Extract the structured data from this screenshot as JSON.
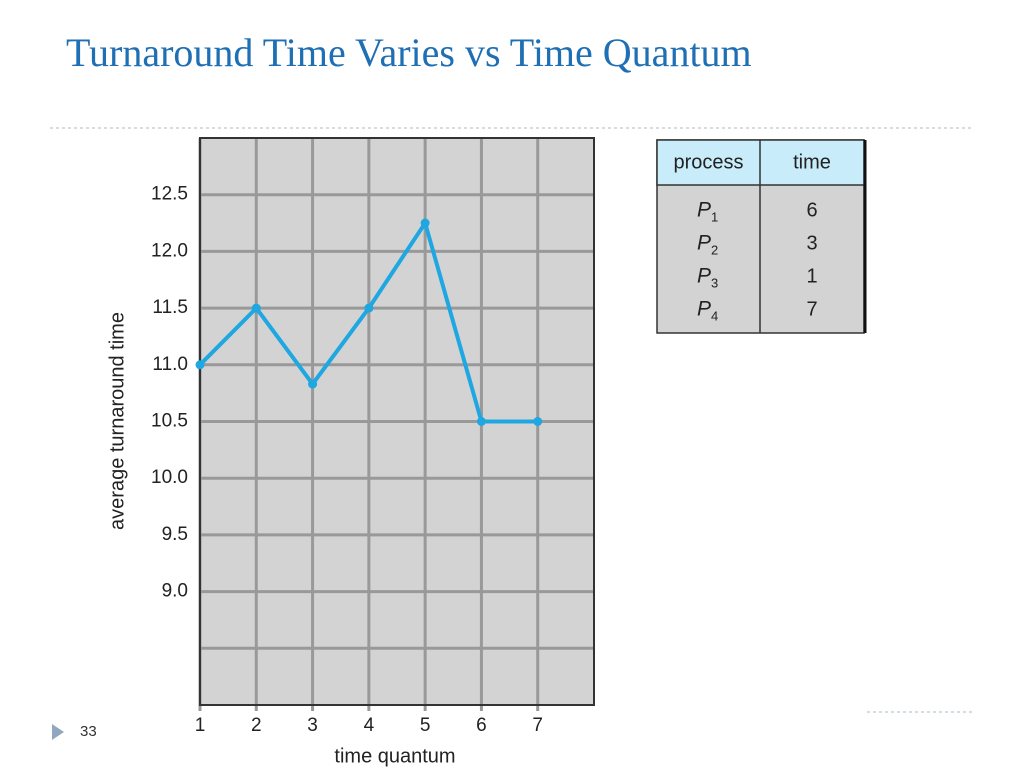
{
  "slide": {
    "title": "Turnaround Time Varies vs Time Quantum",
    "page_number": "33"
  },
  "chart_data": {
    "type": "line",
    "xlabel": "time quantum",
    "ylabel": "average turnaround time",
    "x": [
      1,
      2,
      3,
      4,
      5,
      6,
      7
    ],
    "series": [
      {
        "color": "#1ea7e1",
        "values": [
          11.0,
          11.5,
          10.83,
          11.5,
          12.25,
          10.5,
          10.5
        ]
      }
    ],
    "xlim": [
      1,
      8
    ],
    "xticks": [
      1,
      2,
      3,
      4,
      5,
      6,
      7
    ],
    "ylim": [
      8,
      13
    ],
    "yticks": [
      {
        "value": 9,
        "label": "9.0"
      },
      9.5,
      {
        "value": 10,
        "label": "10.0"
      },
      10.5,
      {
        "value": 11,
        "label": "11.0"
      },
      11.5,
      {
        "value": 12,
        "label": "12.0"
      },
      12.5
    ],
    "grid": true
  },
  "table": {
    "header": [
      "process",
      "time"
    ],
    "rows": [
      {
        "name": "P",
        "sub": "1",
        "time": "6"
      },
      {
        "name": "P",
        "sub": "2",
        "time": "3"
      },
      {
        "name": "P",
        "sub": "3",
        "time": "1"
      },
      {
        "name": "P",
        "sub": "4",
        "time": "7"
      }
    ]
  }
}
